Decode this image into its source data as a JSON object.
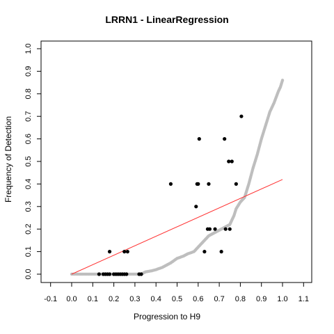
{
  "chart_data": {
    "type": "scatter",
    "title": "LRRN1 - LinearRegression",
    "xlabel": "Progression to H9",
    "ylabel": "Frequency of Detection",
    "xlim": [
      -0.1,
      1.1
    ],
    "ylim": [
      0.0,
      1.0
    ],
    "x_ticks": [
      "-0.1",
      "0.0",
      "0.1",
      "0.2",
      "0.3",
      "0.4",
      "0.5",
      "0.6",
      "0.7",
      "0.8",
      "0.9",
      "1.0",
      "1.1"
    ],
    "y_ticks": [
      "0.0",
      "0.1",
      "0.2",
      "0.3",
      "0.4",
      "0.5",
      "0.6",
      "0.7",
      "0.8",
      "0.9",
      "1.0"
    ],
    "grid": false,
    "colors": {
      "observed": "#000000",
      "curve": "#bebebe",
      "fit": "#ff3030"
    },
    "series": [
      {
        "values": [
          [
            0.13,
            0.0
          ],
          [
            0.15,
            0.0
          ],
          [
            0.16,
            0.0
          ],
          [
            0.17,
            0.0
          ],
          [
            0.18,
            0.0
          ],
          [
            0.2,
            0.0
          ],
          [
            0.21,
            0.0
          ],
          [
            0.22,
            0.0
          ],
          [
            0.23,
            0.0
          ],
          [
            0.24,
            0.0
          ],
          [
            0.25,
            0.0
          ],
          [
            0.26,
            0.0
          ],
          [
            0.32,
            0.0
          ],
          [
            0.33,
            0.0
          ],
          [
            0.18,
            0.1
          ],
          [
            0.25,
            0.1
          ],
          [
            0.265,
            0.1
          ],
          [
            0.63,
            0.1
          ],
          [
            0.71,
            0.1
          ],
          [
            0.645,
            0.2
          ],
          [
            0.655,
            0.2
          ],
          [
            0.68,
            0.2
          ],
          [
            0.73,
            0.2
          ],
          [
            0.75,
            0.2
          ],
          [
            0.59,
            0.3
          ],
          [
            0.47,
            0.4
          ],
          [
            0.595,
            0.4
          ],
          [
            0.6,
            0.4
          ],
          [
            0.65,
            0.4
          ],
          [
            0.78,
            0.4
          ],
          [
            0.745,
            0.5
          ],
          [
            0.76,
            0.5
          ],
          [
            0.605,
            0.6
          ],
          [
            0.725,
            0.6
          ],
          [
            0.805,
            0.7
          ]
        ]
      },
      {
        "values": [
          [
            0.0,
            0.0
          ],
          [
            0.05,
            0.0
          ],
          [
            0.1,
            0.0
          ],
          [
            0.15,
            0.0
          ],
          [
            0.2,
            0.0
          ],
          [
            0.25,
            0.0
          ],
          [
            0.3,
            0.0
          ],
          [
            0.33,
            0.0
          ],
          [
            0.35,
            0.01
          ],
          [
            0.38,
            0.015
          ],
          [
            0.4,
            0.02
          ],
          [
            0.43,
            0.03
          ],
          [
            0.45,
            0.04
          ],
          [
            0.47,
            0.05
          ],
          [
            0.5,
            0.07
          ],
          [
            0.53,
            0.08
          ],
          [
            0.55,
            0.09
          ],
          [
            0.58,
            0.1
          ],
          [
            0.6,
            0.12
          ],
          [
            0.62,
            0.14
          ],
          [
            0.63,
            0.15
          ],
          [
            0.65,
            0.17
          ],
          [
            0.67,
            0.18
          ],
          [
            0.69,
            0.19
          ],
          [
            0.71,
            0.2
          ],
          [
            0.73,
            0.21
          ],
          [
            0.75,
            0.22
          ],
          [
            0.76,
            0.24
          ],
          [
            0.77,
            0.26
          ],
          [
            0.78,
            0.29
          ],
          [
            0.8,
            0.32
          ],
          [
            0.82,
            0.34
          ],
          [
            0.84,
            0.4
          ],
          [
            0.86,
            0.47
          ],
          [
            0.88,
            0.53
          ],
          [
            0.9,
            0.6
          ],
          [
            0.92,
            0.66
          ],
          [
            0.94,
            0.72
          ],
          [
            0.96,
            0.76
          ],
          [
            0.98,
            0.81
          ],
          [
            0.99,
            0.83
          ],
          [
            1.0,
            0.86
          ]
        ]
      },
      {
        "values": [
          [
            0.0,
            0.0
          ],
          [
            1.0,
            0.42
          ]
        ]
      }
    ]
  }
}
